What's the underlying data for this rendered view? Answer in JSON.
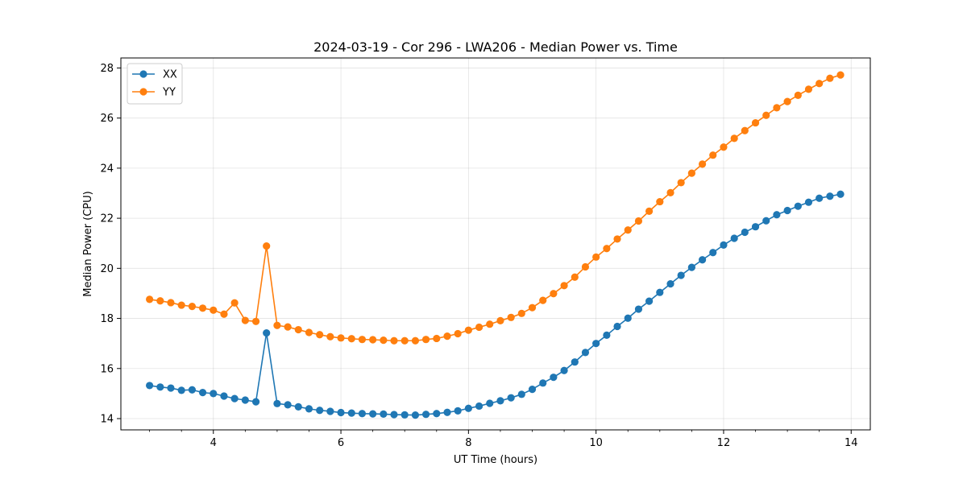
{
  "chart_data": {
    "type": "line",
    "title": "2024-03-19 - Cor 296 - LWA206 - Median Power vs. Time",
    "xlabel": "UT Time (hours)",
    "ylabel": "Median Power (CPU)",
    "xlim": [
      2.55,
      14.3
    ],
    "ylim": [
      13.55,
      28.4
    ],
    "xticks": [
      4,
      6,
      8,
      10,
      12,
      14
    ],
    "xtick_labels": [
      "4",
      "6",
      "8",
      "10",
      "12",
      "14"
    ],
    "xminor_step": 0.5,
    "yticks": [
      14,
      16,
      18,
      20,
      22,
      24,
      26,
      28
    ],
    "ytick_labels": [
      "14",
      "16",
      "18",
      "20",
      "22",
      "24",
      "26",
      "28"
    ],
    "grid": true,
    "legend_position": "top-left",
    "x": [
      3.0,
      3.167,
      3.333,
      3.5,
      3.667,
      3.833,
      4.0,
      4.167,
      4.333,
      4.5,
      4.667,
      4.833,
      5.0,
      5.167,
      5.333,
      5.5,
      5.667,
      5.833,
      6.0,
      6.167,
      6.333,
      6.5,
      6.667,
      6.833,
      7.0,
      7.167,
      7.333,
      7.5,
      7.667,
      7.833,
      8.0,
      8.167,
      8.333,
      8.5,
      8.667,
      8.833,
      9.0,
      9.167,
      9.333,
      9.5,
      9.667,
      9.833,
      10.0,
      10.167,
      10.333,
      10.5,
      10.667,
      10.833,
      11.0,
      11.167,
      11.333,
      11.5,
      11.667,
      11.833,
      12.0,
      12.167,
      12.333,
      12.5,
      12.667,
      12.833,
      13.0,
      13.167,
      13.333,
      13.5,
      13.667,
      13.833
    ],
    "series": [
      {
        "name": "XX",
        "color": "#1f77b4",
        "values": [
          15.32,
          15.26,
          15.22,
          15.13,
          15.15,
          15.04,
          15.0,
          14.9,
          14.8,
          14.74,
          14.67,
          17.42,
          14.6,
          14.55,
          14.47,
          14.39,
          14.33,
          14.29,
          14.24,
          14.22,
          14.2,
          14.19,
          14.18,
          14.16,
          14.15,
          14.14,
          14.17,
          14.2,
          14.25,
          14.31,
          14.41,
          14.5,
          14.61,
          14.71,
          14.83,
          14.97,
          15.17,
          15.42,
          15.65,
          15.92,
          16.26,
          16.64,
          17.0,
          17.33,
          17.68,
          18.01,
          18.37,
          18.69,
          19.04,
          19.38,
          19.72,
          20.04,
          20.34,
          20.63,
          20.93,
          21.2,
          21.44,
          21.66,
          21.9,
          22.14,
          22.31,
          22.48,
          22.64,
          22.8,
          22.88,
          22.96
        ]
      },
      {
        "name": "YY",
        "color": "#ff7f0e",
        "values": [
          18.76,
          18.7,
          18.63,
          18.53,
          18.48,
          18.41,
          18.33,
          18.17,
          18.62,
          17.92,
          17.88,
          20.89,
          17.72,
          17.66,
          17.55,
          17.44,
          17.35,
          17.27,
          17.22,
          17.19,
          17.16,
          17.15,
          17.13,
          17.11,
          17.11,
          17.11,
          17.16,
          17.2,
          17.29,
          17.39,
          17.53,
          17.65,
          17.77,
          17.91,
          18.04,
          18.2,
          18.43,
          18.72,
          18.99,
          19.31,
          19.65,
          20.06,
          20.45,
          20.79,
          21.17,
          21.53,
          21.89,
          22.28,
          22.66,
          23.02,
          23.42,
          23.8,
          24.16,
          24.52,
          24.84,
          25.19,
          25.5,
          25.81,
          26.11,
          26.41,
          26.66,
          26.91,
          27.15,
          27.38,
          27.59,
          27.72
        ]
      }
    ]
  }
}
